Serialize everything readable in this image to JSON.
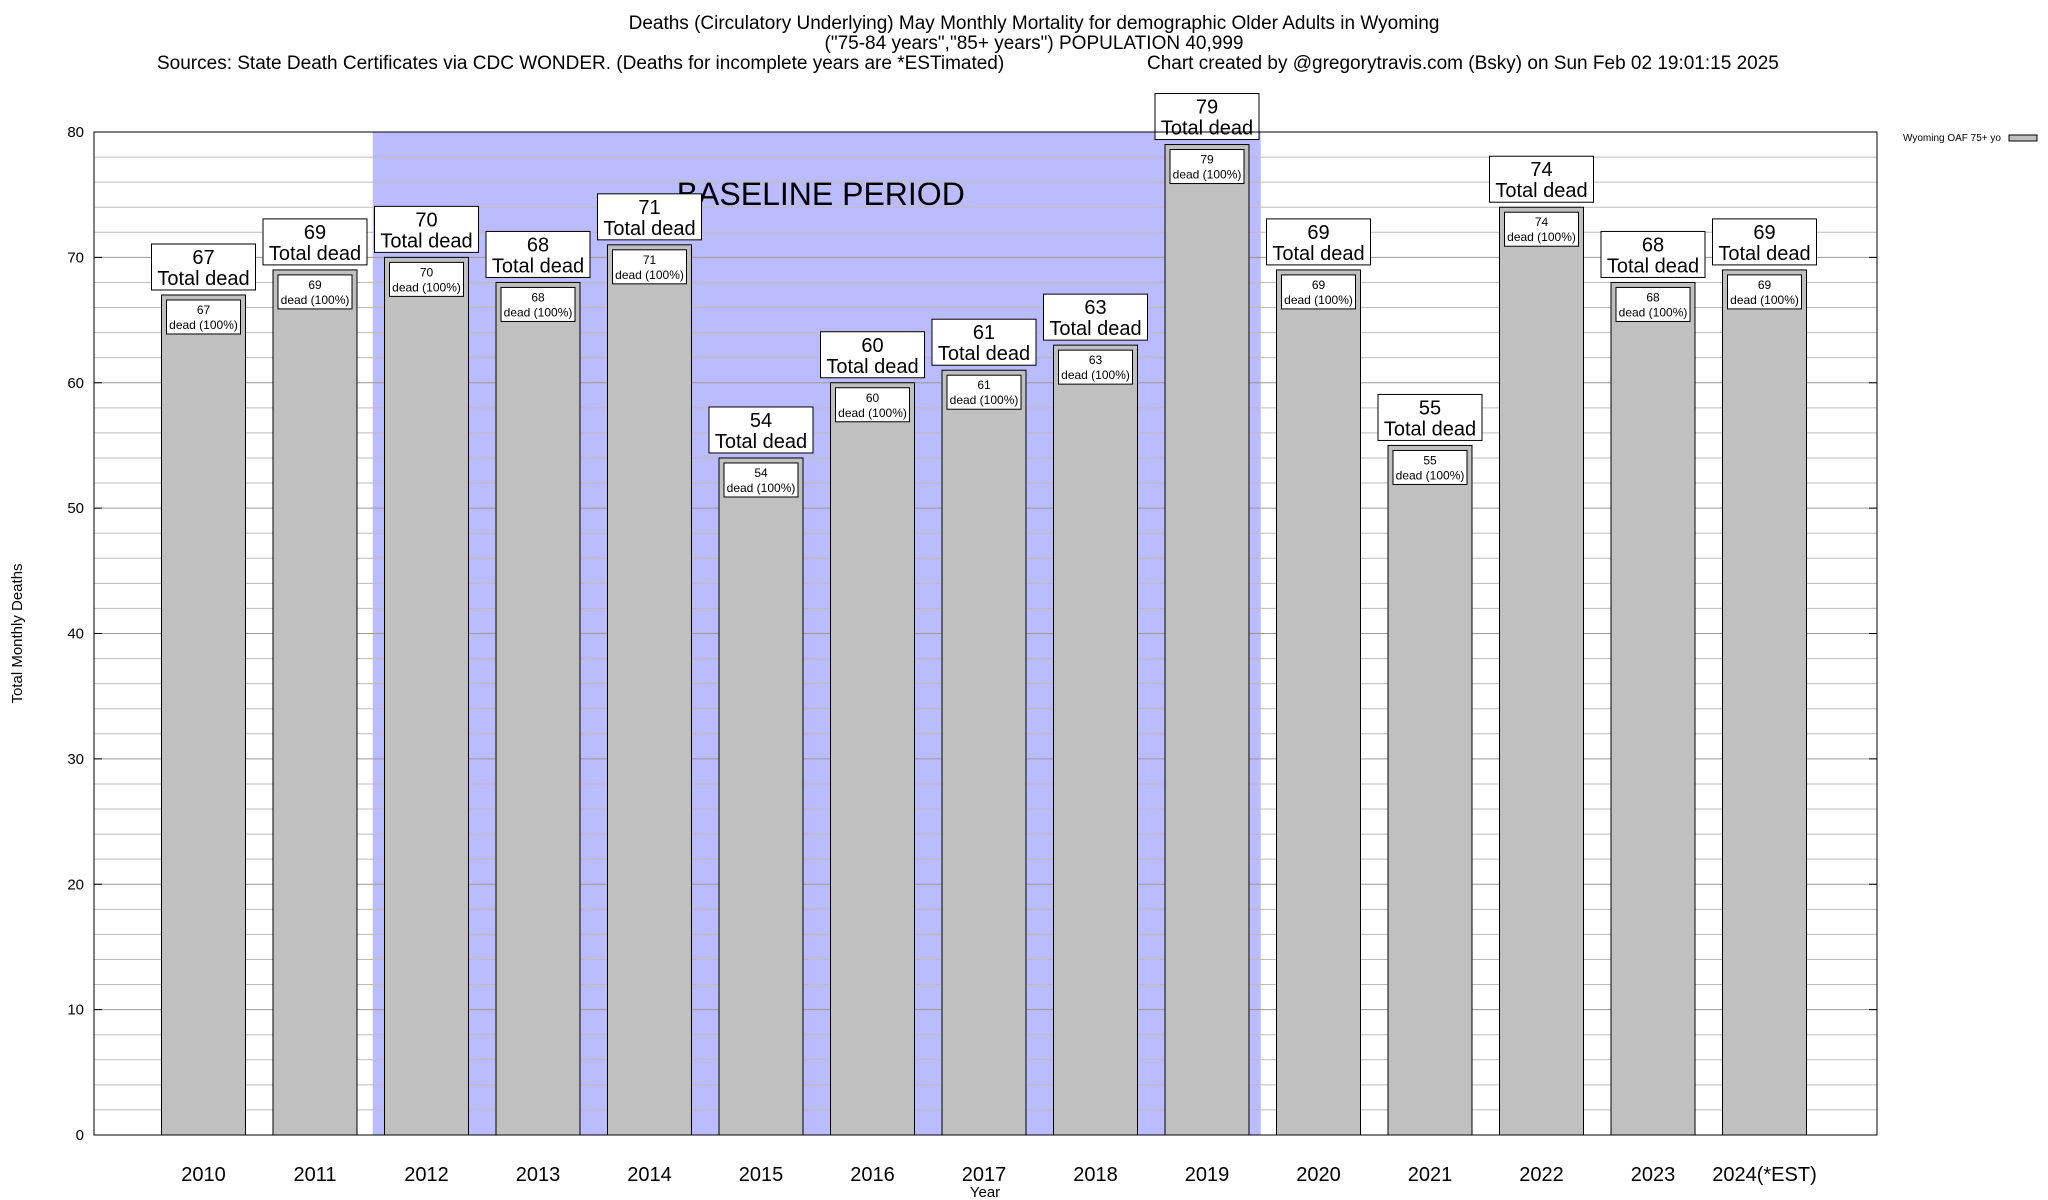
{
  "header": {
    "title_line1": "Deaths (Circulatory Underlying) May Monthly Mortality for demographic Older Adults in Wyoming",
    "title_line2": "(\"75-84 years\",\"85+ years\") POPULATION 40,999",
    "sources": "Sources: State Death Certificates via CDC WONDER. (Deaths for incomplete years are *ESTimated)",
    "credit": "Chart created by @gregorytravis.com (Bsky) on Sun Feb 02 19:01:15 2025"
  },
  "chart_data": {
    "type": "bar",
    "title": "Deaths (Circulatory Underlying) May Monthly Mortality for demographic Older Adults in Wyoming",
    "xlabel": "Year",
    "ylabel": "Total Monthly Deaths",
    "ylim": [
      0,
      80
    ],
    "yticks": [
      0,
      10,
      20,
      30,
      40,
      50,
      60,
      70,
      80
    ],
    "categories": [
      "2010",
      "2011",
      "2012",
      "2013",
      "2014",
      "2015",
      "2016",
      "2017",
      "2018",
      "2019",
      "2020",
      "2021",
      "2022",
      "2023",
      "2024(*EST)"
    ],
    "values": [
      67,
      69,
      70,
      68,
      71,
      54,
      60,
      61,
      63,
      79,
      69,
      55,
      74,
      68,
      69
    ],
    "series": [
      {
        "name": "Wyoming OAF 75+ yo",
        "values": [
          67,
          69,
          70,
          68,
          71,
          54,
          60,
          61,
          63,
          79,
          69,
          55,
          74,
          68,
          69
        ],
        "color": "#c0c0c0"
      }
    ],
    "total_label_suffix": "Total dead",
    "inner_label_suffix": "dead (100%)",
    "baseline_period": {
      "label": "BASELINE PERIOD",
      "from": "2012",
      "to": "2019",
      "color": "#bbbbff"
    },
    "legend": {
      "label": "Wyoming OAF 75+ yo",
      "position": "top-right"
    },
    "grid": true
  }
}
